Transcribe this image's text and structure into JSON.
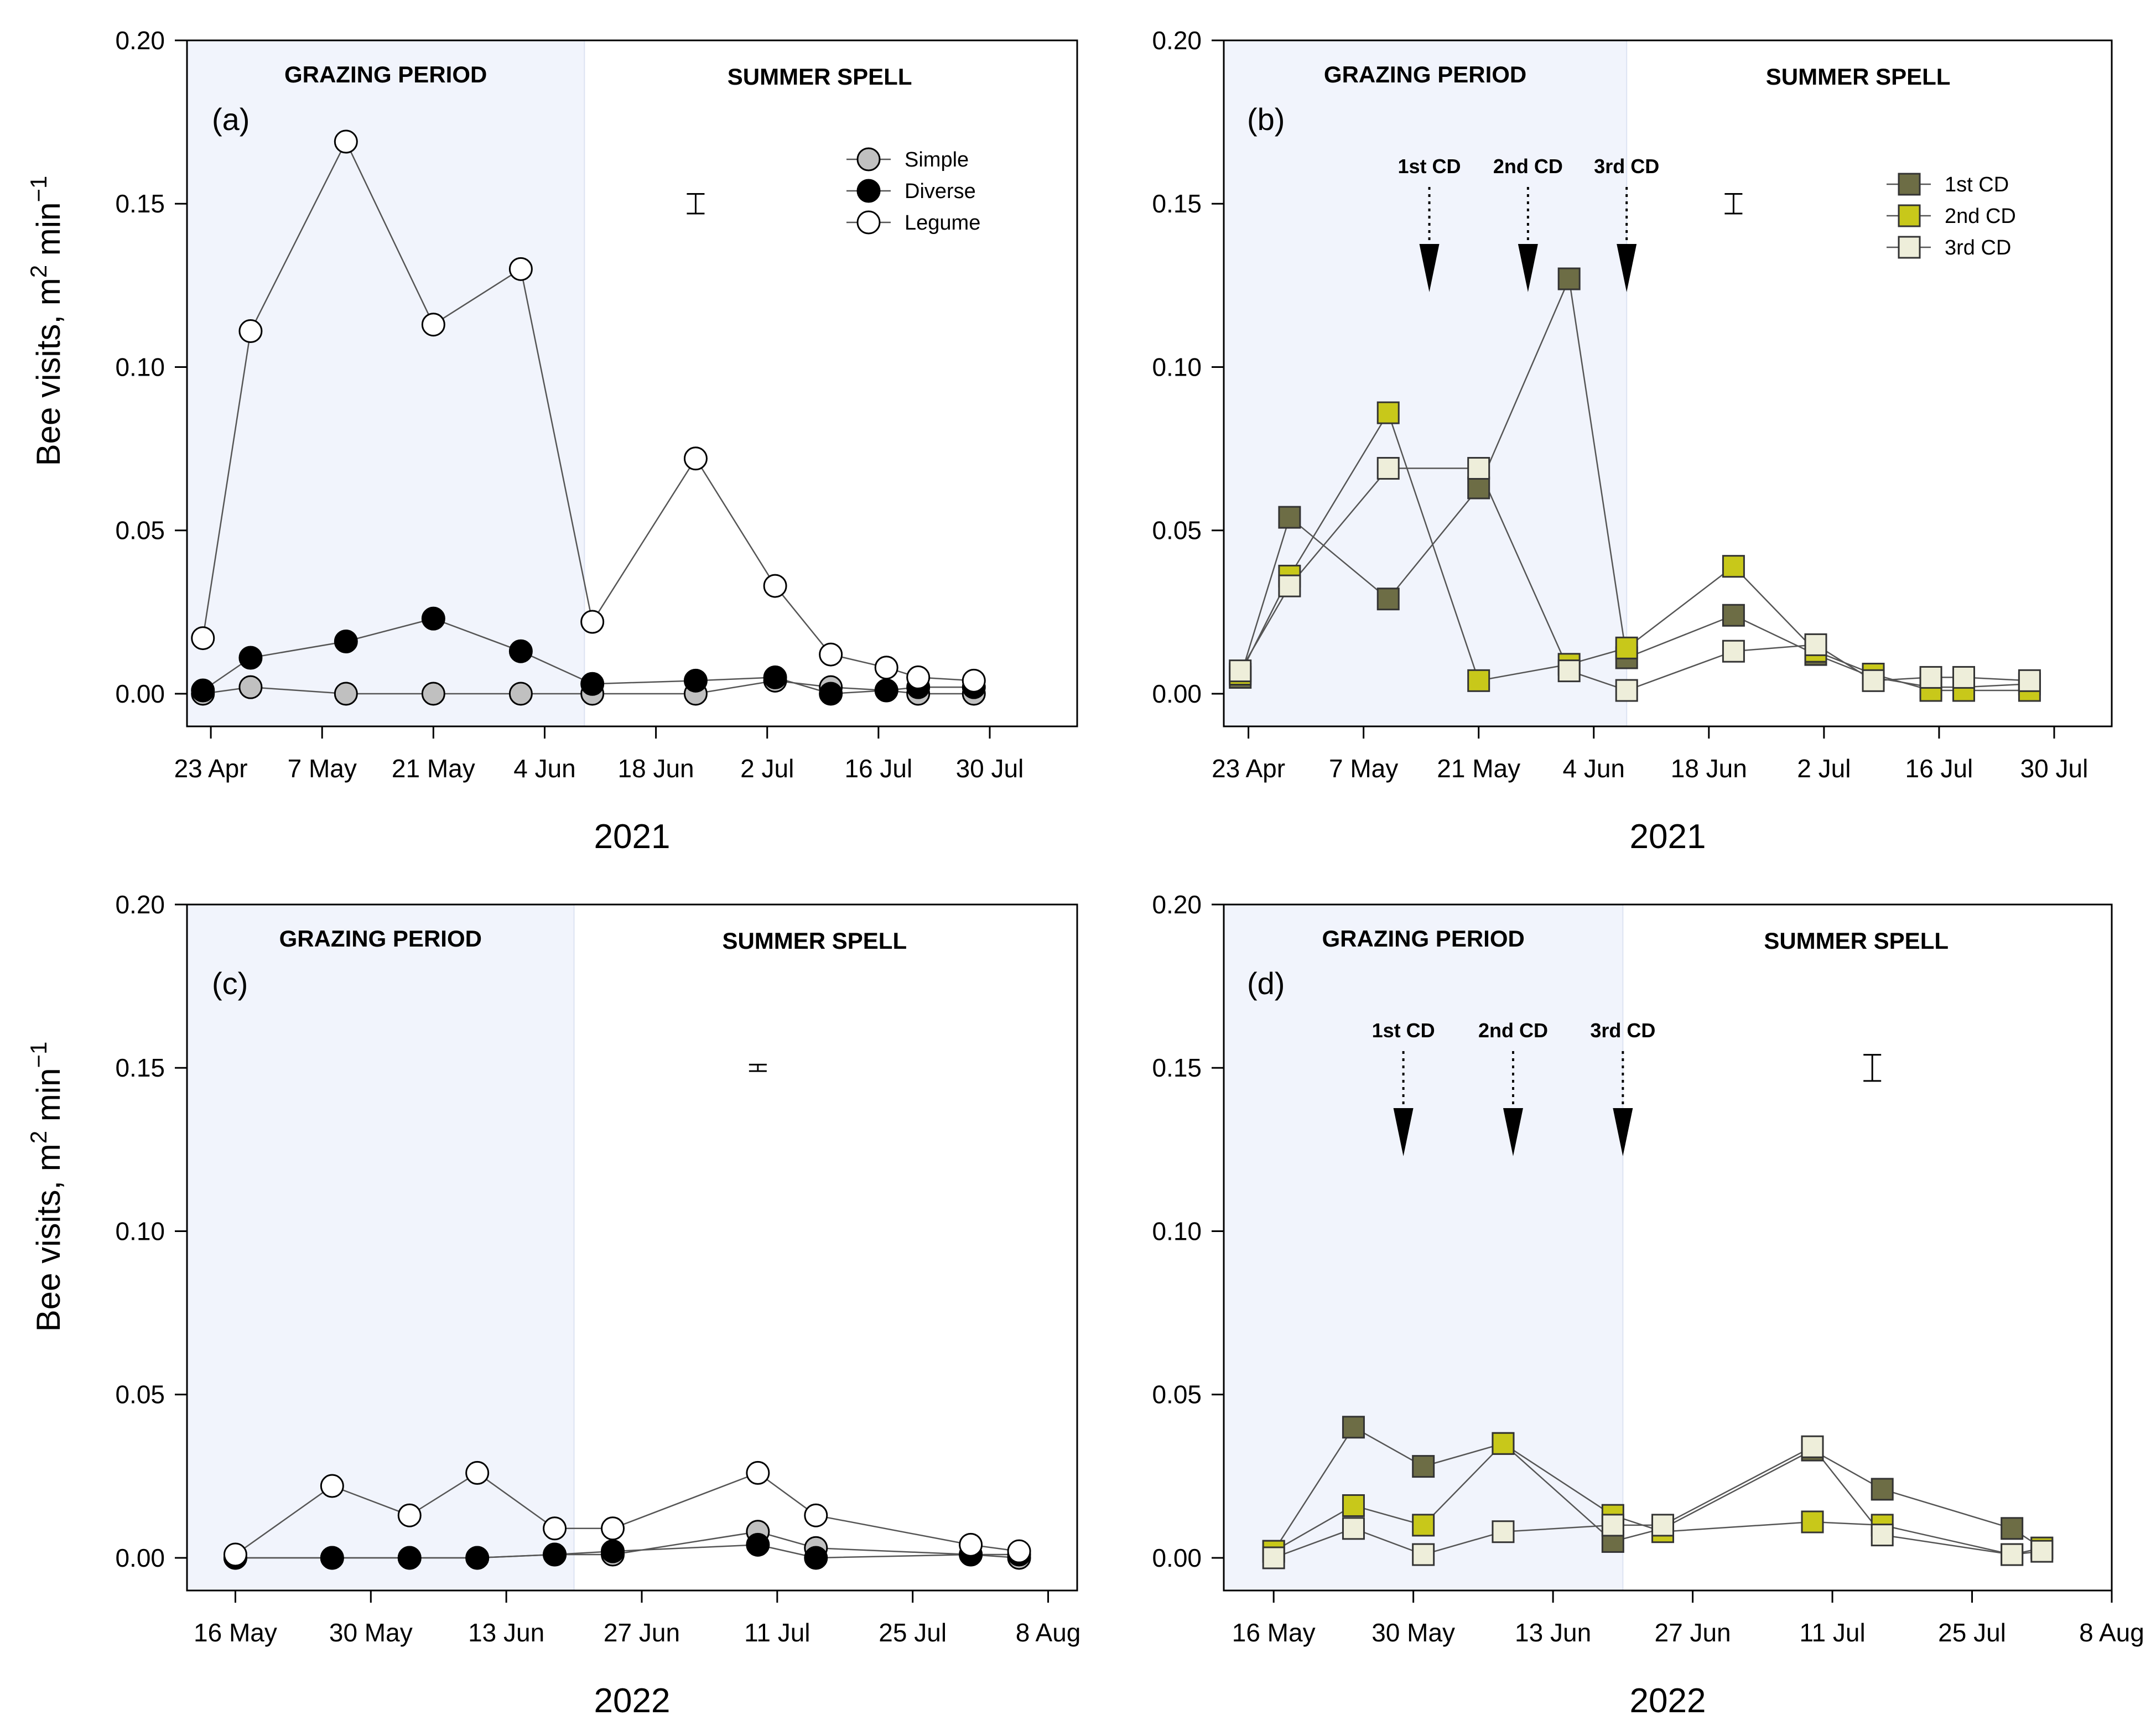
{
  "colors": {
    "grazing_bg": "#f1f4fc",
    "simple": "#c0c0c0",
    "diverse": "#000000",
    "legume": "#ffffff",
    "cd1": "#6d6d45",
    "cd2": "#c8c81a",
    "cd3": "#eeeeda"
  },
  "chart_data": [
    {
      "panel": "a",
      "type": "line",
      "panel_tag": "(a)",
      "xlabel": "2021",
      "ylabel_text": "Bee visits, m",
      "ylabel_sup": "2",
      "ylabel_unit": "min",
      "ylabel_unit_sup": "−1",
      "ylim": [
        -0.01,
        0.2
      ],
      "yticks": [
        0.0,
        0.05,
        0.1,
        0.15,
        0.2
      ],
      "ytick_labels": [
        "0.00",
        "0.05",
        "0.10",
        "0.15",
        "0.20"
      ],
      "xlim": [
        -3,
        109
      ],
      "xticks": [
        0,
        14,
        28,
        42,
        56,
        70,
        84,
        98
      ],
      "xtick_labels": [
        "23 Apr",
        "7 May",
        "21 May",
        "4 Jun",
        "18 Jun",
        "2 Jul",
        "16 Jul",
        "30 Jul"
      ],
      "period_split": 47,
      "grazing_label": "GRAZING PERIOD",
      "summer_label": "SUMMER SPELL",
      "error_bar": {
        "x": 61,
        "y_low": 0.147,
        "y_high": 0.153
      },
      "series": [
        {
          "name": "Simple",
          "marker": "circle",
          "color_key": "simple",
          "x": [
            -1,
            5,
            17,
            28,
            39,
            48,
            61,
            71,
            78,
            85,
            89,
            96
          ],
          "y": [
            0.0,
            0.002,
            0.0,
            0.0,
            0.0,
            0.0,
            0.0,
            0.004,
            0.002,
            0.001,
            0.0,
            0.0
          ]
        },
        {
          "name": "Diverse",
          "marker": "circle",
          "color_key": "diverse",
          "x": [
            -1,
            5,
            17,
            28,
            39,
            48,
            61,
            71,
            78,
            85,
            89,
            96
          ],
          "y": [
            0.001,
            0.011,
            0.016,
            0.023,
            0.013,
            0.003,
            0.004,
            0.005,
            0.0,
            0.001,
            0.002,
            0.002
          ]
        },
        {
          "name": "Legume",
          "marker": "circle",
          "color_key": "legume",
          "x": [
            -1,
            5,
            17,
            28,
            39,
            48,
            61,
            71,
            78,
            85,
            89,
            96
          ],
          "y": [
            0.017,
            0.111,
            0.169,
            0.113,
            0.13,
            0.022,
            0.072,
            0.033,
            0.012,
            0.008,
            0.005,
            0.004
          ]
        }
      ],
      "legend": [
        "Simple",
        "Diverse",
        "Legume"
      ]
    },
    {
      "panel": "b",
      "type": "line",
      "panel_tag": "(b)",
      "xlabel": "2021",
      "ylim": [
        -0.01,
        0.2
      ],
      "yticks": [
        0.0,
        0.05,
        0.1,
        0.15,
        0.2
      ],
      "ytick_labels": [
        "0.00",
        "0.05",
        "0.10",
        "0.15",
        "0.20"
      ],
      "xlim": [
        -3,
        105
      ],
      "xticks": [
        0,
        14,
        28,
        42,
        56,
        70,
        84,
        98
      ],
      "xtick_labels": [
        "23 Apr",
        "7 May",
        "21 May",
        "4 Jun",
        "18 Jun",
        "2 Jul",
        "16 Jul",
        "30 Jul"
      ],
      "period_split": 46,
      "grazing_label": "GRAZING PERIOD",
      "summer_label": "SUMMER SPELL",
      "error_bar": {
        "x": 59,
        "y_low": 0.147,
        "y_high": 0.153
      },
      "cutting_dates": [
        {
          "label": "1st CD",
          "x": 22
        },
        {
          "label": "2nd CD",
          "x": 34
        },
        {
          "label": "3rd CD",
          "x": 46
        }
      ],
      "series": [
        {
          "name": "1st CD",
          "marker": "square",
          "color_key": "cd1",
          "x": [
            -1,
            5,
            17,
            28,
            39,
            46,
            59,
            69,
            76,
            83,
            87,
            95
          ],
          "y": [
            0.005,
            0.054,
            0.029,
            0.063,
            0.127,
            0.011,
            0.024,
            0.012,
            0.005,
            0.002,
            0.002,
            0.003
          ]
        },
        {
          "name": "2nd CD",
          "marker": "square",
          "color_key": "cd2",
          "x": [
            -1,
            5,
            17,
            28,
            39,
            46,
            59,
            69,
            76,
            83,
            87,
            95
          ],
          "y": [
            0.006,
            0.036,
            0.086,
            0.004,
            0.009,
            0.014,
            0.039,
            0.013,
            0.006,
            0.001,
            0.001,
            0.001
          ]
        },
        {
          "name": "3rd CD",
          "marker": "square",
          "color_key": "cd3",
          "x": [
            -1,
            5,
            17,
            28,
            39,
            46,
            59,
            69,
            76,
            83,
            87,
            95
          ],
          "y": [
            0.007,
            0.033,
            0.069,
            0.069,
            0.007,
            0.001,
            0.013,
            0.015,
            0.004,
            0.005,
            0.005,
            0.004
          ]
        }
      ],
      "legend": [
        "1st CD",
        "2nd CD",
        "3rd CD"
      ]
    },
    {
      "panel": "c",
      "type": "line",
      "panel_tag": "(c)",
      "xlabel": "2022",
      "ylim": [
        -0.01,
        0.2
      ],
      "yticks": [
        0.0,
        0.05,
        0.1,
        0.15,
        0.2
      ],
      "ytick_labels": [
        "0.00",
        "0.05",
        "0.10",
        "0.15",
        "0.20"
      ],
      "xlim": [
        -5,
        87
      ],
      "xticks": [
        0,
        14,
        28,
        42,
        56,
        70,
        84
      ],
      "xtick_labels": [
        "16 May",
        "30 May",
        "13 Jun",
        "27 Jun",
        "11 Jul",
        "25 Jul",
        "8 Aug"
      ],
      "period_split": 35,
      "grazing_label": "GRAZING PERIOD",
      "summer_label": "SUMMER SPELL",
      "error_bar": {
        "x": 54,
        "y_low": 0.149,
        "y_high": 0.151
      },
      "series": [
        {
          "name": "Simple",
          "marker": "circle",
          "color_key": "simple",
          "x": [
            0,
            10,
            18,
            25,
            33,
            39,
            54,
            60,
            76,
            81
          ],
          "y": [
            0.0,
            0.0,
            0.0,
            0.0,
            0.001,
            0.001,
            0.008,
            0.003,
            0.001,
            0.0
          ]
        },
        {
          "name": "Diverse",
          "marker": "circle",
          "color_key": "diverse",
          "x": [
            0,
            10,
            18,
            25,
            33,
            39,
            54,
            60,
            76,
            81
          ],
          "y": [
            0.0,
            0.0,
            0.0,
            0.0,
            0.001,
            0.002,
            0.004,
            0.0,
            0.001,
            0.001
          ]
        },
        {
          "name": "Legume",
          "marker": "circle",
          "color_key": "legume",
          "x": [
            0,
            10,
            18,
            25,
            33,
            39,
            54,
            60,
            76,
            81
          ],
          "y": [
            0.001,
            0.022,
            0.013,
            0.026,
            0.009,
            0.009,
            0.026,
            0.013,
            0.004,
            0.002
          ]
        }
      ]
    },
    {
      "panel": "d",
      "type": "line",
      "panel_tag": "(d)",
      "xlabel": "2022",
      "ylim": [
        -0.01,
        0.2
      ],
      "yticks": [
        0.0,
        0.05,
        0.1,
        0.15,
        0.2
      ],
      "ytick_labels": [
        "0.00",
        "0.05",
        "0.10",
        "0.15",
        "0.20"
      ],
      "xlim": [
        -5,
        84
      ],
      "xticks": [
        0,
        14,
        28,
        42,
        56,
        70,
        84
      ],
      "xtick_labels": [
        "16 May",
        "30 May",
        "13 Jun",
        "27 Jun",
        "11 Jul",
        "25 Jul",
        "8 Aug"
      ],
      "period_split": 35,
      "grazing_label": "GRAZING PERIOD",
      "summer_label": "SUMMER SPELL",
      "error_bar": {
        "x": 60,
        "y_low": 0.146,
        "y_high": 0.154
      },
      "cutting_dates": [
        {
          "label": "1st CD",
          "x": 13
        },
        {
          "label": "2nd CD",
          "x": 24
        },
        {
          "label": "3rd CD",
          "x": 35
        }
      ],
      "series": [
        {
          "name": "1st CD",
          "marker": "square",
          "color_key": "cd1",
          "x": [
            0,
            8,
            15,
            23,
            34,
            39,
            54,
            61,
            74,
            77
          ],
          "y": [
            0.002,
            0.04,
            0.028,
            0.035,
            0.005,
            0.009,
            0.033,
            0.021,
            0.009,
            0.003
          ]
        },
        {
          "name": "2nd CD",
          "marker": "square",
          "color_key": "cd2",
          "x": [
            0,
            8,
            15,
            23,
            34,
            39,
            54,
            61,
            74,
            77
          ],
          "y": [
            0.002,
            0.016,
            0.01,
            0.035,
            0.013,
            0.008,
            0.011,
            0.01,
            0.001,
            0.003
          ]
        },
        {
          "name": "3rd CD",
          "marker": "square",
          "color_key": "cd3",
          "x": [
            0,
            8,
            15,
            23,
            34,
            39,
            54,
            61,
            74,
            77
          ],
          "y": [
            0.0,
            0.009,
            0.001,
            0.008,
            0.01,
            0.01,
            0.034,
            0.007,
            0.001,
            0.002
          ]
        }
      ]
    }
  ]
}
